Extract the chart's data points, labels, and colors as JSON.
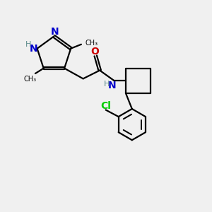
{
  "bg_color": "#f0f0f0",
  "bond_color": "#000000",
  "N_color": "#0000cc",
  "O_color": "#cc0000",
  "Cl_color": "#00cc00",
  "H_color": "#5a8a8a",
  "font_size": 10,
  "small_font_size": 8,
  "line_width": 1.6,
  "figsize": [
    3.0,
    3.0
  ],
  "dpi": 100,
  "xlim": [
    0,
    10
  ],
  "ylim": [
    0,
    10
  ]
}
